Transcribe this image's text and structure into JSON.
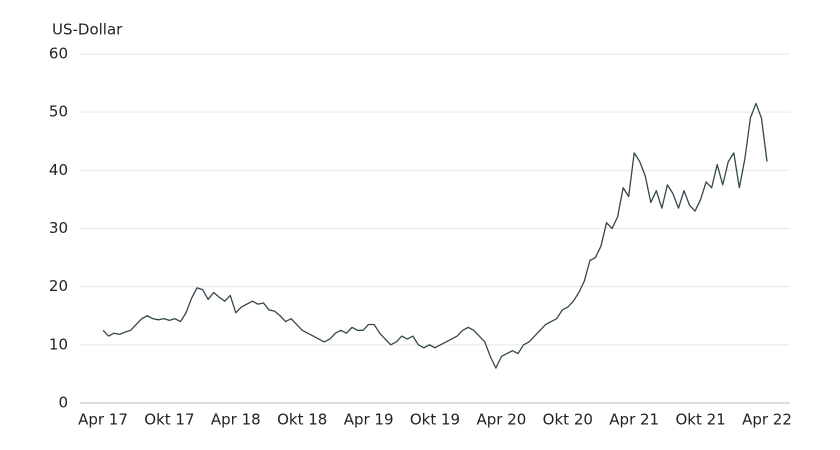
{
  "chart_data": {
    "type": "line",
    "y_label": "US-Dollar",
    "categories": [
      "Apr 17",
      null,
      null,
      null,
      null,
      null,
      null,
      null,
      null,
      null,
      null,
      null,
      "Okt 17",
      null,
      null,
      null,
      null,
      null,
      null,
      null,
      null,
      null,
      null,
      null,
      "Apr 18",
      null,
      null,
      null,
      null,
      null,
      null,
      null,
      null,
      null,
      null,
      null,
      "Okt 18",
      null,
      null,
      null,
      null,
      null,
      null,
      null,
      null,
      null,
      null,
      null,
      "Apr 19",
      null,
      null,
      null,
      null,
      null,
      null,
      null,
      null,
      null,
      null,
      null,
      "Okt 19",
      null,
      null,
      null,
      null,
      null,
      null,
      null,
      null,
      null,
      null,
      null,
      "Apr 20",
      null,
      null,
      null,
      null,
      null,
      null,
      null,
      null,
      null,
      null,
      null,
      "Okt 20",
      null,
      null,
      null,
      null,
      null,
      null,
      null,
      null,
      null,
      null,
      null,
      "Apr 21",
      null,
      null,
      null,
      null,
      null,
      null,
      null,
      null,
      null,
      null,
      null,
      "Okt 21",
      null,
      null,
      null,
      null,
      null,
      null,
      null,
      null,
      null,
      null,
      null,
      "Apr 22"
    ],
    "values": [
      12.5,
      11.5,
      12,
      11.8,
      12.2,
      12.5,
      13.5,
      14.5,
      15,
      14.5,
      14.3,
      14.5,
      14.2,
      14.5,
      14.0,
      15.5,
      18.0,
      19.8,
      19.5,
      17.8,
      19.0,
      18.2,
      17.5,
      18.5,
      15.5,
      16.5,
      17.0,
      17.5,
      17.0,
      17.2,
      16.0,
      15.8,
      15.0,
      14.0,
      14.5,
      13.5,
      12.5,
      12.0,
      11.5,
      11.0,
      10.5,
      11.0,
      12.0,
      12.5,
      12.0,
      13.0,
      12.5,
      12.5,
      13.5,
      13.5,
      12.0,
      11.0,
      10.0,
      10.5,
      11.5,
      11.0,
      11.5,
      10.0,
      9.5,
      10.0,
      9.5,
      10.0,
      10.5,
      11.0,
      11.5,
      12.5,
      13.0,
      12.5,
      11.5,
      10.5,
      8.0,
      6.0,
      8.0,
      8.5,
      9.0,
      8.5,
      10.0,
      10.5,
      11.5,
      12.5,
      13.5,
      14.0,
      14.5,
      16.0,
      16.5,
      17.5,
      19.0,
      21.0,
      24.5,
      25.0,
      27.0,
      31.0,
      30.0,
      32.0,
      37.0,
      35.5,
      43.0,
      41.5,
      39.0,
      34.5,
      36.5,
      33.5,
      37.5,
      36.0,
      33.5,
      36.5,
      34.0,
      33.0,
      35.0,
      38.0,
      37.0,
      41.0,
      37.5,
      41.5,
      43.0,
      37.0,
      42.0,
      49.0,
      51.5,
      49.0,
      41.5
    ],
    "color": "#34474d",
    "ylim": [
      0,
      60
    ],
    "yticks": [
      0,
      10,
      20,
      30,
      40,
      50,
      60
    ],
    "grid": true
  }
}
